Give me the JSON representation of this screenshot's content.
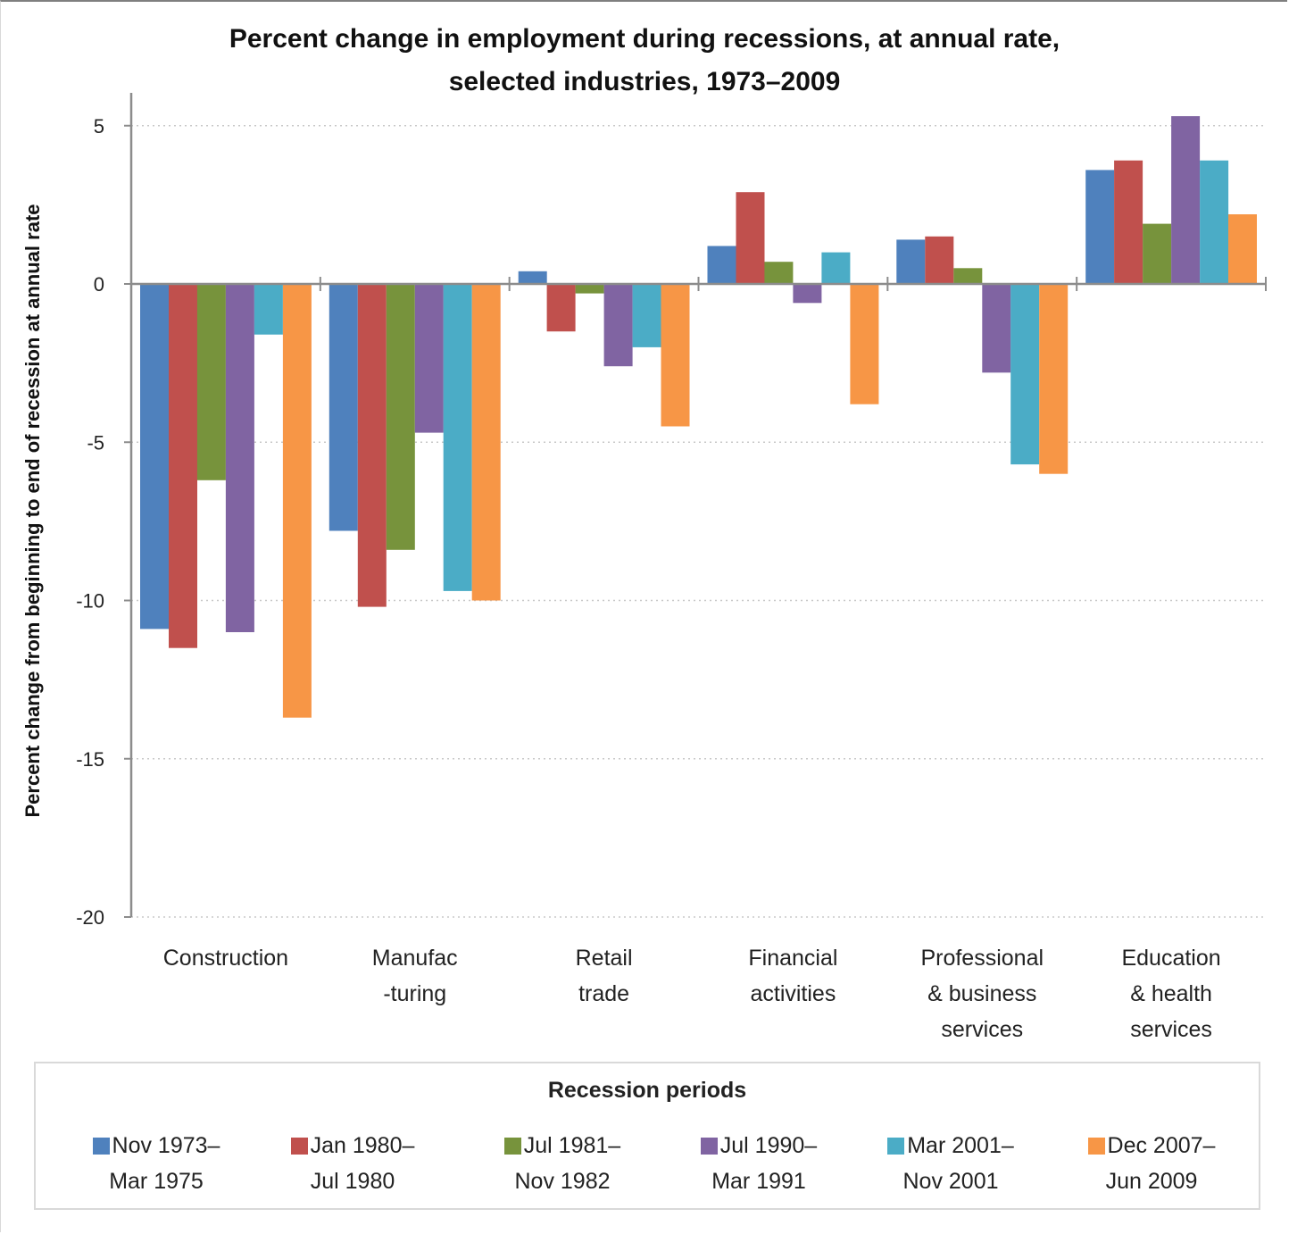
{
  "chart_data": {
    "type": "bar",
    "title": "Percent change in employment during recessions, at annual rate, selected industries, 1973–2009",
    "title_lines": [
      "Percent change in employment during recessions, at annual rate,",
      "selected industries, 1973–2009"
    ],
    "xlabel": "",
    "ylabel": "Percent change from beginning to end of recession at annual rate",
    "ylim": [
      -20,
      6
    ],
    "yticks": [
      5,
      0,
      -5,
      -10,
      -15,
      -20
    ],
    "grid": true,
    "legend_position": "bottom",
    "legend_title": "Recession periods",
    "categories": [
      "Construction",
      "Manufacturing",
      "Retail trade",
      "Financial activities",
      "Professional & business services",
      "Education & health services"
    ],
    "category_label_lines": [
      [
        "Construction"
      ],
      [
        "Manufac",
        "-turing"
      ],
      [
        "Retail",
        "trade"
      ],
      [
        "Financial",
        "activities"
      ],
      [
        "Professional",
        "& business",
        "services"
      ],
      [
        "Education",
        "& health",
        "services"
      ]
    ],
    "series": [
      {
        "name": "Nov 1973–Mar 1975",
        "label_lines": [
          "Nov 1973–",
          "Mar 1975"
        ],
        "color": "#4F81BD",
        "values": [
          -10.9,
          -7.8,
          0.4,
          1.2,
          1.4,
          3.6
        ]
      },
      {
        "name": "Jan 1980–Jul 1980",
        "label_lines": [
          "Jan 1980–",
          "Jul 1980"
        ],
        "color": "#C0504D",
        "values": [
          -11.5,
          -10.2,
          -1.5,
          2.9,
          1.5,
          3.9
        ]
      },
      {
        "name": "Jul 1981–Nov 1982",
        "label_lines": [
          "Jul 1981–",
          "Nov 1982"
        ],
        "color": "#77933C",
        "values": [
          -6.2,
          -8.4,
          -0.3,
          0.7,
          0.5,
          1.9
        ]
      },
      {
        "name": "Jul 1990–Mar 1991",
        "label_lines": [
          "Jul 1990–",
          "Mar 1991"
        ],
        "color": "#8064A2",
        "values": [
          -11.0,
          -4.7,
          -2.6,
          -0.6,
          -2.8,
          5.3
        ]
      },
      {
        "name": "Mar 2001–Nov 2001",
        "label_lines": [
          "Mar 2001–",
          "Nov 2001"
        ],
        "color": "#4BACC6",
        "values": [
          -1.6,
          -9.7,
          -2.0,
          1.0,
          -5.7,
          3.9
        ]
      },
      {
        "name": "Dec 2007–Jun 2009",
        "label_lines": [
          "Dec 2007–",
          "Jun 2009"
        ],
        "color": "#F79646",
        "values": [
          -13.7,
          -10.0,
          -4.5,
          -3.8,
          -6.0,
          2.2
        ]
      }
    ]
  }
}
